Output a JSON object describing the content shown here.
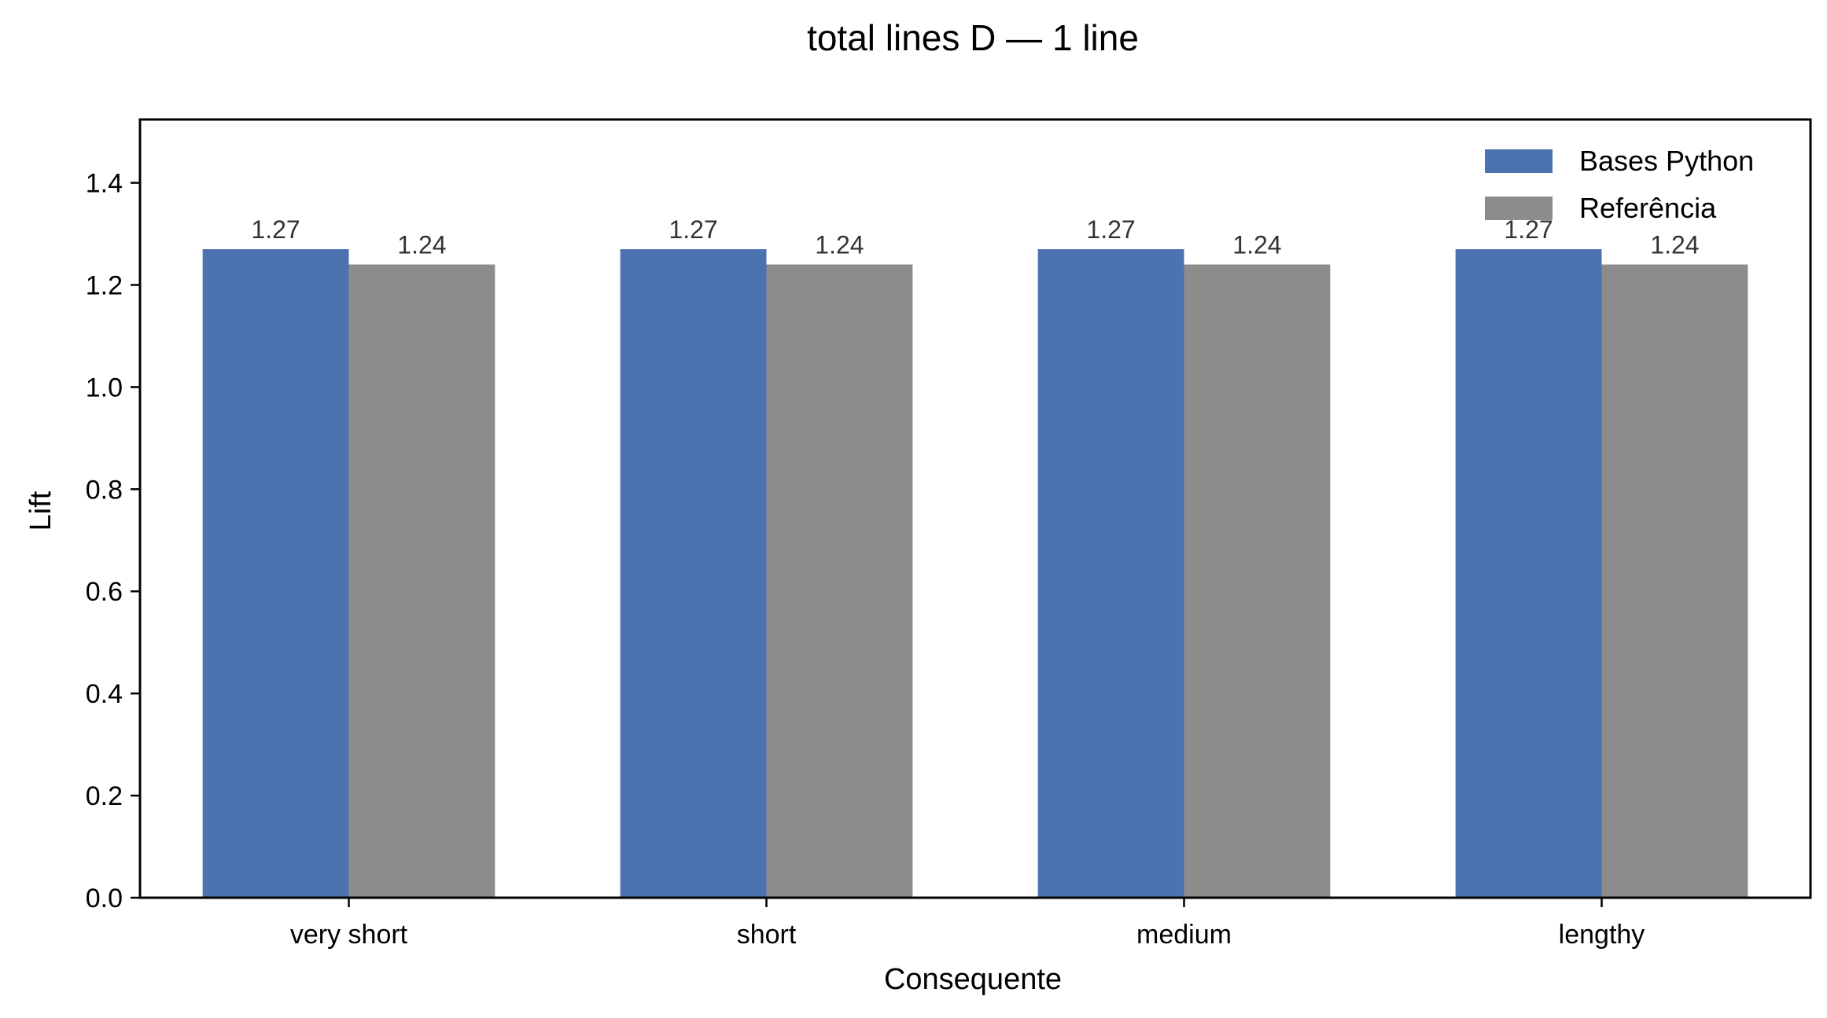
{
  "chart_data": {
    "type": "bar",
    "title": "total lines D — 1 line",
    "xlabel": "Consequente",
    "ylabel": "Lift",
    "categories": [
      "very short",
      "short",
      "medium",
      "lengthy"
    ],
    "series": [
      {
        "name": "Bases Python",
        "color": "#4c72b0",
        "values": [
          1.27,
          1.27,
          1.27,
          1.27
        ],
        "labels": [
          "1.27",
          "1.27",
          "1.27",
          "1.27"
        ]
      },
      {
        "name": "Referência",
        "color": "#8c8c8c",
        "values": [
          1.24,
          1.24,
          1.24,
          1.24
        ],
        "labels": [
          "1.24",
          "1.24",
          "1.24",
          "1.24"
        ]
      }
    ],
    "ylim": [
      0,
      1.524
    ],
    "yticks": [
      "0.0",
      "0.2",
      "0.4",
      "0.6",
      "0.8",
      "1.0",
      "1.2",
      "1.4"
    ],
    "grid": false,
    "legend_position": "top-right"
  }
}
